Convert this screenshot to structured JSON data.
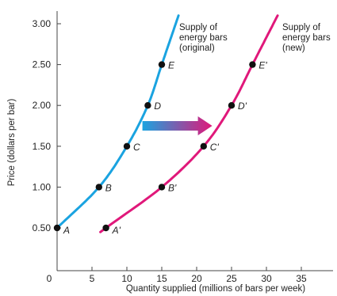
{
  "chart_data": {
    "type": "line",
    "title": "",
    "xlabel": "Quantity supplied (millions of bars per week)",
    "ylabel": "Price (dollars per bar)",
    "xlim": [
      0,
      40
    ],
    "ylim": [
      0.4,
      3.2
    ],
    "x_ticks": [
      "0",
      "5",
      "10",
      "15",
      "20",
      "25",
      "30",
      "35"
    ],
    "y_ticks": [
      "0.50",
      "1.00",
      "1.50",
      "2.00",
      "2.50",
      "3.00"
    ],
    "grid": false,
    "legend": "none",
    "series": [
      {
        "name": "Supply of energy bars (original)",
        "label_lines": [
          "Supply of",
          "energy bars",
          "(original)"
        ],
        "color": "#1aa3e0",
        "curve_range": [
          0.5,
          3.1
        ],
        "points": [
          {
            "label": "A",
            "x": 0,
            "y": 0.5
          },
          {
            "label": "B",
            "x": 6,
            "y": 1.0
          },
          {
            "label": "C",
            "x": 10,
            "y": 1.5
          },
          {
            "label": "D",
            "x": 13,
            "y": 2.0
          },
          {
            "label": "E",
            "x": 15,
            "y": 2.5
          }
        ]
      },
      {
        "name": "Supply of energy bars (new)",
        "label_lines": [
          "Supply of",
          "energy bars",
          "(new)"
        ],
        "color": "#e0187a",
        "curve_range": [
          0.45,
          3.1
        ],
        "points": [
          {
            "label": "A'",
            "x": 7,
            "y": 0.5
          },
          {
            "label": "B'",
            "x": 15,
            "y": 1.0
          },
          {
            "label": "C'",
            "x": 21,
            "y": 1.5
          },
          {
            "label": "D'",
            "x": 25,
            "y": 2.0
          },
          {
            "label": "E'",
            "x": 28,
            "y": 2.5
          }
        ]
      }
    ],
    "annotations": [
      {
        "type": "arrow",
        "meaning": "rightward shift of supply",
        "from": {
          "x": 12,
          "y": 1.75
        },
        "to": {
          "x": 22,
          "y": 1.75
        },
        "color_start": "#1aa3e0",
        "color_end": "#e0187a"
      }
    ]
  }
}
